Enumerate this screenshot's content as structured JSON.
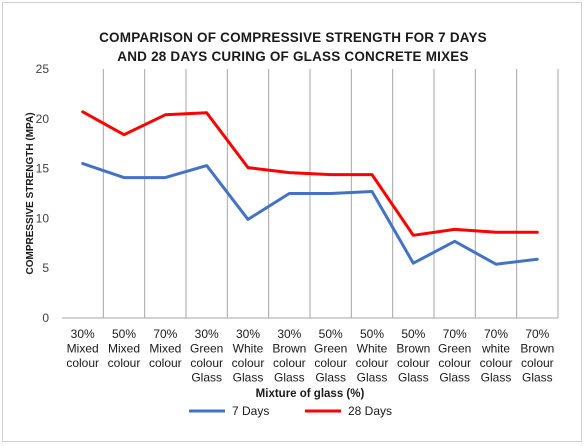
{
  "chart_data": {
    "type": "line",
    "title_lines": [
      "COMPARISON OF COMPRESSIVE STRENGTH FOR 7 DAYS",
      "AND 28 DAYS CURING OF GLASS CONCRETE MIXES"
    ],
    "xlabel": "Mixture of glass (%)",
    "ylabel": "COMPRESSIVE STRENGTH (MPA)",
    "ylim": [
      0,
      25
    ],
    "yticks": [
      0,
      5,
      10,
      15,
      20,
      25
    ],
    "grid": "vertical",
    "legend_position": "bottom",
    "categories": [
      [
        "30%",
        "Mixed",
        "colour"
      ],
      [
        "50%",
        "Mixed",
        "colour"
      ],
      [
        "70%",
        "Mixed",
        "colour"
      ],
      [
        "30%",
        "Green",
        "colour",
        "Glass"
      ],
      [
        "30%",
        "White",
        "colour",
        "Glass"
      ],
      [
        "30%",
        "Brown",
        "colour",
        "Glass"
      ],
      [
        "50%",
        "Green",
        "colour",
        "Glass"
      ],
      [
        "50%",
        "White",
        "colour",
        "Glass"
      ],
      [
        "50%",
        "Brown",
        "colour",
        "Glass"
      ],
      [
        "70%",
        "Green",
        "colour",
        "Glass"
      ],
      [
        "70%",
        "white",
        "colour",
        "Glass"
      ],
      [
        "70%",
        "Brown",
        "colour",
        "Glass"
      ]
    ],
    "series": [
      {
        "name": "7 Days",
        "color": "#4472c4",
        "values": [
          15.5,
          14.1,
          14.1,
          15.3,
          9.9,
          12.5,
          12.5,
          12.7,
          5.5,
          7.7,
          5.4,
          5.9
        ]
      },
      {
        "name": "28 Days",
        "color": "#ff0000",
        "values": [
          20.7,
          18.4,
          20.4,
          20.6,
          15.1,
          14.6,
          14.4,
          14.4,
          8.3,
          8.9,
          8.6,
          8.6
        ]
      }
    ]
  }
}
